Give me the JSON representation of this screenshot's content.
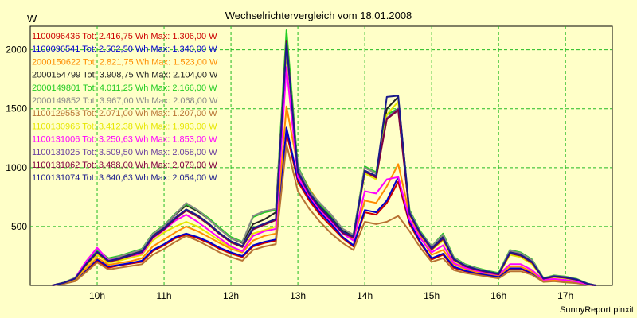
{
  "chart_data": {
    "type": "line",
    "title": "Wechselrichtervergleich vom 18.01.2008",
    "ylabel": "W",
    "xlabel": "",
    "footer": "SunnyReport pinxit",
    "ylim": [
      0,
      2200
    ],
    "xlim": [
      9.0,
      17.7
    ],
    "yticks": [
      500,
      1000,
      1500,
      2000
    ],
    "xticks": [
      {
        "value": 10,
        "label": "10h"
      },
      {
        "value": 11,
        "label": "11h"
      },
      {
        "value": 12,
        "label": "12h"
      },
      {
        "value": 13,
        "label": "13h"
      },
      {
        "value": 14,
        "label": "14h"
      },
      {
        "value": 15,
        "label": "15h"
      },
      {
        "value": 16,
        "label": "16h"
      },
      {
        "value": 17,
        "label": "17h"
      }
    ],
    "grid": true,
    "legend_position": "top-left",
    "x": [
      9.33,
      9.5,
      9.67,
      9.83,
      10.0,
      10.17,
      10.33,
      10.5,
      10.67,
      10.83,
      11.0,
      11.17,
      11.33,
      11.5,
      11.67,
      11.83,
      12.0,
      12.17,
      12.33,
      12.5,
      12.67,
      12.83,
      13.0,
      13.17,
      13.33,
      13.5,
      13.67,
      13.83,
      14.0,
      14.17,
      14.33,
      14.5,
      14.67,
      14.83,
      15.0,
      15.17,
      15.33,
      15.5,
      15.67,
      15.83,
      16.0,
      16.17,
      16.33,
      16.5,
      16.67,
      16.83,
      17.0,
      17.17,
      17.33,
      17.45
    ],
    "series": [
      {
        "name": "1100096436",
        "legend": "1100096436 Tot: 2.416,75 Wh Max: 1.306,00 W",
        "color": "#cc0000",
        "values": [
          0,
          15,
          40,
          120,
          210,
          150,
          170,
          185,
          200,
          290,
          340,
          400,
          430,
          400,
          360,
          310,
          270,
          240,
          330,
          360,
          380,
          1300,
          880,
          720,
          600,
          500,
          400,
          330,
          620,
          600,
          700,
          880,
          520,
          360,
          220,
          260,
          150,
          120,
          100,
          85,
          70,
          140,
          140,
          100,
          35,
          40,
          30,
          20,
          5,
          0
        ]
      },
      {
        "name": "1100096541",
        "legend": "1100096541 Tot: 2.502,50 Wh Max: 1.340,00 W",
        "color": "#0000cc",
        "values": [
          0,
          15,
          45,
          130,
          220,
          160,
          175,
          190,
          210,
          300,
          350,
          410,
          440,
          410,
          370,
          320,
          280,
          250,
          340,
          370,
          390,
          1340,
          900,
          740,
          620,
          520,
          410,
          340,
          640,
          620,
          720,
          920,
          540,
          370,
          230,
          270,
          160,
          125,
          105,
          90,
          75,
          145,
          145,
          105,
          38,
          42,
          32,
          22,
          6,
          0
        ]
      },
      {
        "name": "2000150622",
        "legend": "2000150622 Tot: 2.821,75 Wh Max: 1.523,00 W",
        "color": "#ff8c00",
        "values": [
          0,
          18,
          50,
          140,
          235,
          175,
          190,
          205,
          230,
          330,
          390,
          450,
          500,
          460,
          410,
          360,
          310,
          280,
          380,
          420,
          440,
          1520,
          1000,
          820,
          690,
          570,
          460,
          390,
          720,
          700,
          840,
          1030,
          600,
          410,
          260,
          300,
          180,
          140,
          115,
          100,
          85,
          160,
          160,
          115,
          42,
          46,
          36,
          25,
          7,
          0
        ]
      },
      {
        "name": "2000154799",
        "legend": "2000154799 Tot: 3.908,75 Wh Max: 2.104,00 W",
        "color": "#222222",
        "values": [
          0,
          22,
          60,
          180,
          290,
          220,
          240,
          270,
          300,
          430,
          500,
          600,
          680,
          630,
          560,
          480,
          400,
          360,
          520,
          560,
          620,
          2100,
          1000,
          800,
          680,
          580,
          470,
          420,
          1000,
          950,
          1500,
          1600,
          620,
          450,
          320,
          420,
          230,
          170,
          140,
          120,
          100,
          290,
          270,
          210,
          60,
          80,
          70,
          50,
          15,
          0
        ]
      },
      {
        "name": "2000149801",
        "legend": "2000149801 Tot: 4.011,25 Wh Max: 2.166,00 W",
        "color": "#22cc22",
        "values": [
          0,
          24,
          65,
          185,
          300,
          230,
          250,
          280,
          310,
          440,
          510,
          610,
          690,
          640,
          570,
          490,
          410,
          370,
          580,
          620,
          640,
          2166,
          1010,
          810,
          690,
          590,
          480,
          430,
          1010,
          960,
          1450,
          1500,
          640,
          460,
          330,
          440,
          240,
          180,
          150,
          125,
          105,
          300,
          280,
          220,
          62,
          85,
          75,
          55,
          16,
          0
        ]
      },
      {
        "name": "2000149852",
        "legend": "2000149852 Tot: 3.967,00 Wh Max: 2.068,00 W",
        "color": "#888888",
        "values": [
          0,
          23,
          62,
          200,
          310,
          220,
          245,
          275,
          305,
          435,
          505,
          605,
          700,
          640,
          560,
          480,
          400,
          365,
          590,
          630,
          650,
          2068,
          1000,
          800,
          700,
          600,
          480,
          430,
          1000,
          950,
          1420,
          1480,
          630,
          450,
          330,
          430,
          235,
          175,
          145,
          120,
          100,
          295,
          275,
          215,
          60,
          82,
          72,
          52,
          15,
          0
        ]
      },
      {
        "name": "1100129553",
        "legend": "1100129553 Tot: 2.071,00 Wh Max: 1.207,00 W",
        "color": "#b87333",
        "values": [
          0,
          12,
          35,
          110,
          195,
          135,
          150,
          165,
          180,
          260,
          310,
          370,
          420,
          380,
          330,
          280,
          240,
          210,
          300,
          330,
          350,
          1200,
          800,
          650,
          540,
          440,
          360,
          300,
          540,
          520,
          540,
          590,
          460,
          320,
          200,
          230,
          130,
          105,
          90,
          75,
          60,
          120,
          120,
          90,
          30,
          35,
          25,
          18,
          4,
          0
        ]
      },
      {
        "name": "1100130966",
        "legend": "1100130966 Tot: 3.412,38 Wh Max: 1.983,00 W",
        "color": "#e6e600",
        "values": [
          0,
          20,
          55,
          160,
          260,
          190,
          210,
          235,
          260,
          380,
          450,
          500,
          540,
          500,
          440,
          380,
          320,
          290,
          440,
          470,
          500,
          1983,
          950,
          780,
          660,
          560,
          450,
          400,
          950,
          900,
          1450,
          1560,
          600,
          430,
          300,
          380,
          210,
          160,
          130,
          110,
          90,
          260,
          240,
          180,
          55,
          70,
          60,
          45,
          12,
          0
        ]
      },
      {
        "name": "1100131006",
        "legend": "1100131006 Tot: 3.250,63 Wh Max: 1.853,00 W",
        "color": "#ff00ff",
        "values": [
          0,
          22,
          60,
          200,
          320,
          210,
          230,
          250,
          270,
          400,
          470,
          550,
          600,
          540,
          470,
          400,
          330,
          290,
          420,
          460,
          480,
          1853,
          920,
          760,
          640,
          540,
          440,
          380,
          800,
          780,
          900,
          920,
          560,
          400,
          280,
          340,
          190,
          150,
          125,
          105,
          90,
          180,
          180,
          130,
          48,
          55,
          45,
          32,
          9,
          0
        ]
      },
      {
        "name": "1100131025",
        "legend": "1100131025 Tot: 3.509,50 Wh Max: 2.058,00 W",
        "color": "#6b3fa0",
        "values": [
          0,
          21,
          58,
          175,
          280,
          205,
          225,
          255,
          285,
          410,
          480,
          570,
          640,
          590,
          520,
          440,
          370,
          330,
          480,
          520,
          560,
          2058,
          960,
          780,
          660,
          560,
          450,
          410,
          970,
          920,
          1420,
          1500,
          610,
          440,
          310,
          400,
          220,
          165,
          135,
          115,
          95,
          275,
          255,
          195,
          58,
          75,
          65,
          48,
          13,
          0
        ]
      },
      {
        "name": "1100131062",
        "legend": "1100131062 Tot: 3.488,00 Wh Max: 2.079,00 W",
        "color": "#800040",
        "values": [
          0,
          21,
          57,
          172,
          278,
          202,
          222,
          252,
          282,
          405,
          475,
          565,
          635,
          585,
          515,
          435,
          365,
          325,
          475,
          515,
          555,
          2079,
          955,
          775,
          655,
          555,
          445,
          405,
          965,
          915,
          1410,
          1490,
          605,
          435,
          305,
          395,
          218,
          163,
          133,
          113,
          93,
          272,
          252,
          192,
          57,
          74,
          64,
          47,
          13,
          0
        ]
      },
      {
        "name": "1100131074",
        "legend": "1100131074 Tot: 3.640,63 Wh Max: 2.054,00 W",
        "color": "#1a1a8c",
        "values": [
          0,
          22,
          59,
          178,
          285,
          208,
          228,
          258,
          288,
          415,
          485,
          575,
          645,
          595,
          525,
          445,
          375,
          335,
          485,
          525,
          565,
          2054,
          965,
          785,
          665,
          565,
          455,
          415,
          975,
          930,
          1600,
          1610,
          615,
          445,
          315,
          405,
          225,
          168,
          138,
          118,
          98,
          280,
          260,
          200,
          59,
          78,
          68,
          50,
          14,
          0
        ]
      }
    ]
  }
}
